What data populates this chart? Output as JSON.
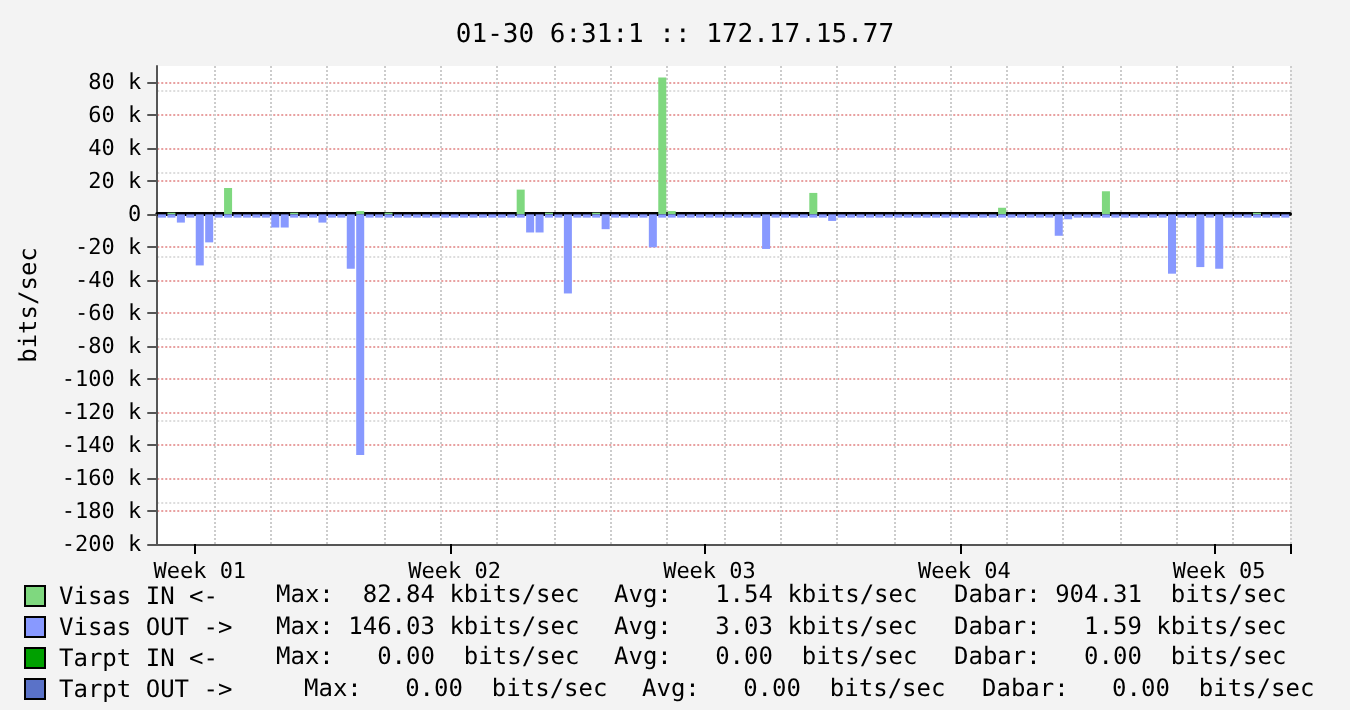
{
  "chart_data": {
    "type": "bar",
    "title": "01-30 6:31:1 :: 172.17.15.77",
    "ylabel": "bits/sec",
    "categories": [
      null,
      null,
      null,
      null,
      "Week 01",
      null,
      null,
      null,
      null,
      null,
      null,
      null,
      null,
      null,
      null,
      null,
      null,
      null,
      null,
      null,
      null,
      null,
      null,
      null,
      null,
      null,
      null,
      null,
      null,
      null,
      null,
      "Week 02",
      null,
      null,
      null,
      null,
      null,
      null,
      null,
      null,
      null,
      null,
      null,
      null,
      null,
      null,
      null,
      null,
      null,
      null,
      null,
      null,
      null,
      null,
      null,
      null,
      null,
      null,
      "Week 03",
      null,
      null,
      null,
      null,
      null,
      null,
      null,
      null,
      null,
      null,
      null,
      null,
      null,
      null,
      null,
      null,
      null,
      null,
      null,
      null,
      null,
      null,
      null,
      null,
      null,
      null,
      "Week 04",
      null,
      null,
      null,
      null,
      null,
      null,
      null,
      null,
      null,
      null,
      null,
      null,
      null,
      null,
      null,
      null,
      null,
      null,
      null,
      null,
      null,
      null,
      null,
      null,
      null,
      null,
      "Week 05",
      null,
      null,
      null,
      null,
      null,
      null,
      null
    ],
    "series": [
      {
        "name": "Visas IN <-",
        "color": "#7fd87f",
        "values": [
          0,
          1,
          0,
          0,
          0,
          0,
          0,
          16,
          0,
          0,
          0,
          0,
          0,
          0,
          1,
          0,
          0,
          0,
          0,
          0,
          0,
          2,
          0,
          0,
          1,
          0,
          0,
          0,
          0,
          0,
          0,
          0,
          0,
          0,
          0,
          0,
          0,
          0,
          15,
          0,
          0,
          1,
          0,
          0,
          0,
          0,
          1,
          0,
          0,
          0,
          0,
          0,
          0,
          83,
          2,
          0,
          0,
          0,
          0,
          0,
          0,
          0,
          0,
          0,
          0,
          0,
          0,
          0,
          0,
          13,
          0,
          0,
          0,
          0,
          0,
          0,
          0,
          0,
          0,
          0,
          0,
          0,
          0,
          0,
          0,
          0,
          0,
          0,
          0,
          4,
          0,
          0,
          0,
          0,
          0,
          0,
          0,
          0,
          0,
          0,
          14,
          0,
          0,
          0,
          0,
          0,
          0,
          0,
          0,
          0,
          0,
          0,
          0,
          0,
          0,
          0,
          1,
          0,
          0,
          0
        ]
      },
      {
        "name": "Visas OUT ->",
        "color": "#8899ff",
        "values": [
          -2,
          -2,
          -5,
          -2,
          -31,
          -17,
          -2,
          -2,
          -2,
          -2,
          -2,
          -2,
          -8,
          -8,
          -2,
          -2,
          -2,
          -5,
          -2,
          -2,
          -33,
          -146,
          -2,
          -2,
          -2,
          -2,
          -2,
          -2,
          -2,
          -2,
          -2,
          -2,
          -2,
          -2,
          -2,
          -2,
          -2,
          -2,
          -2,
          -11,
          -11,
          -2,
          -2,
          -48,
          -2,
          -2,
          -2,
          -9,
          -2,
          -2,
          -2,
          -2,
          -20,
          -2,
          -2,
          -2,
          -2,
          -2,
          -2,
          -2,
          -2,
          -2,
          -2,
          -2,
          -21,
          -2,
          -2,
          -2,
          -2,
          -2,
          -2,
          -4,
          -2,
          -2,
          -2,
          -2,
          -2,
          -2,
          -2,
          -2,
          -2,
          -2,
          -2,
          -2,
          -2,
          -2,
          -2,
          -2,
          -2,
          -2,
          -2,
          -2,
          -2,
          -2,
          -2,
          -13,
          -3,
          -2,
          -2,
          -2,
          -2,
          -2,
          -2,
          -2,
          -2,
          -2,
          -2,
          -36,
          -2,
          -2,
          -32,
          -2,
          -33,
          -2,
          -2,
          -2,
          -2,
          -2,
          -2,
          -2
        ]
      },
      {
        "name": "Tarpt IN <-",
        "color": "#00a000",
        "values": [
          0,
          0,
          0,
          0,
          0,
          0,
          0,
          0,
          0,
          0,
          0,
          0,
          0,
          0,
          0,
          0,
          0,
          0,
          0,
          0,
          0,
          0,
          0,
          0,
          0,
          0,
          0,
          0,
          0,
          0,
          0,
          0,
          0,
          0,
          0,
          0,
          0,
          0,
          0,
          0,
          0,
          0,
          0,
          0,
          0,
          0,
          0,
          0,
          0,
          0,
          0,
          0,
          0,
          0,
          0,
          0,
          0,
          0,
          0,
          0,
          0,
          0,
          0,
          0,
          0,
          0,
          0,
          0,
          0,
          0,
          0,
          0,
          0,
          0,
          0,
          0,
          0,
          0,
          0,
          0,
          0,
          0,
          0,
          0,
          0,
          0,
          0,
          0,
          0,
          0,
          0,
          0,
          0,
          0,
          0,
          0,
          0,
          0,
          0,
          0,
          0,
          0,
          0,
          0,
          0,
          0,
          0,
          0,
          0,
          0,
          0,
          0,
          0,
          0,
          0,
          0,
          0,
          0,
          0,
          0
        ]
      },
      {
        "name": "Tarpt OUT ->",
        "color": "#5a72c8",
        "values": [
          0,
          0,
          0,
          0,
          0,
          0,
          0,
          0,
          0,
          0,
          0,
          0,
          0,
          0,
          0,
          0,
          0,
          0,
          0,
          0,
          0,
          0,
          0,
          0,
          0,
          0,
          0,
          0,
          0,
          0,
          0,
          0,
          0,
          0,
          0,
          0,
          0,
          0,
          0,
          0,
          0,
          0,
          0,
          0,
          0,
          0,
          0,
          0,
          0,
          0,
          0,
          0,
          0,
          0,
          0,
          0,
          0,
          0,
          0,
          0,
          0,
          0,
          0,
          0,
          0,
          0,
          0,
          0,
          0,
          0,
          0,
          0,
          0,
          0,
          0,
          0,
          0,
          0,
          0,
          0,
          0,
          0,
          0,
          0,
          0,
          0,
          0,
          0,
          0,
          0,
          0,
          0,
          0,
          0,
          0,
          0,
          0,
          0,
          0,
          0,
          0,
          0,
          0,
          0,
          0,
          0,
          0,
          0,
          0,
          0,
          0,
          0,
          0,
          0,
          0,
          0,
          0,
          0,
          0,
          0
        ]
      }
    ],
    "ylim": [
      -200,
      90
    ],
    "yticks": [
      {
        "value": -200,
        "label": "-200 k"
      },
      {
        "value": -180,
        "label": "-180 k"
      },
      {
        "value": -160,
        "label": "-160 k"
      },
      {
        "value": -140,
        "label": "-140 k"
      },
      {
        "value": -120,
        "label": "-120 k"
      },
      {
        "value": -100,
        "label": "-100 k"
      },
      {
        "value": -80,
        "label": "-80 k"
      },
      {
        "value": -60,
        "label": "-60 k"
      },
      {
        "value": -40,
        "label": "-40 k"
      },
      {
        "value": -20,
        "label": "-20 k"
      },
      0,
      {
        "value": 20,
        "label": "20 k"
      },
      {
        "value": 40,
        "label": "40 k"
      },
      {
        "value": 60,
        "label": "60 k"
      },
      {
        "value": 80,
        "label": "80 k"
      }
    ],
    "grid": true,
    "legend": "bottom left",
    "annotations": [
      "Max:  82.84 kbits/sec",
      "Avg:   1.54 kbits/sec",
      "Dabar: 904.31  bits/sec",
      "Max: 146.03 kbits/sec",
      "Avg:   3.03 kbits/sec",
      "Dabar:   1.59 kbits/sec",
      "Max:   0.00  bits/sec",
      "Avg:   0.00  bits/sec",
      "Dabar:   0.00  bits/sec",
      "Max:   0.00  bits/sec",
      "Avg:   0.00  bits/sec",
      "Dabar:   0.00  bits/sec"
    ]
  }
}
